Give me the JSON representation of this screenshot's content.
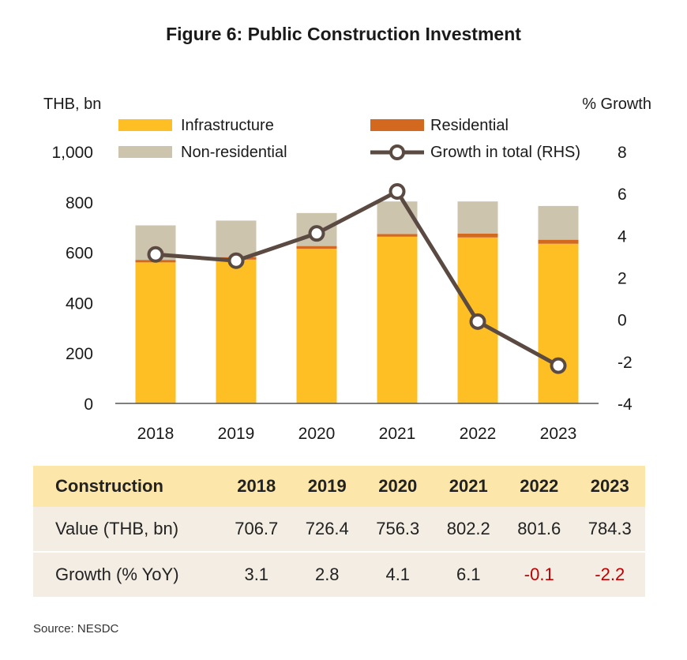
{
  "title": "Figure 6: Public Construction Investment",
  "chart_data": {
    "type": "bar",
    "stacked": true,
    "categories": [
      "2018",
      "2019",
      "2020",
      "2021",
      "2022",
      "2023"
    ],
    "series": [
      {
        "name": "Infrastructure",
        "color": "#fdbf24",
        "values": [
          560,
          571,
          614,
          662,
          659,
          634
        ]
      },
      {
        "name": "Residential",
        "color": "#d2691e",
        "values": [
          10,
          10,
          11,
          11,
          15,
          16
        ]
      },
      {
        "name": "Non-residential",
        "color": "#cdc4ae",
        "values": [
          137,
          145,
          131,
          129,
          128,
          134
        ]
      }
    ],
    "line": {
      "name": "Growth in total (RHS)",
      "axis": "right",
      "color": "#5a4a42",
      "values": [
        3.1,
        2.8,
        4.1,
        6.1,
        -0.1,
        -2.2
      ]
    },
    "ylabel_left": "THB, bn",
    "ylabel_right": "% Growth",
    "ylim_left": [
      0,
      1000
    ],
    "ylim_right": [
      -4,
      8
    ],
    "yticks_left": [
      "0",
      "200",
      "400",
      "600",
      "800",
      "1,000"
    ],
    "yticks_right": [
      "-4",
      "-2",
      "0",
      "2",
      "4",
      "6",
      "8"
    ],
    "legend_position": "top",
    "grid": false
  },
  "table": {
    "header": [
      "Construction",
      "2018",
      "2019",
      "2020",
      "2021",
      "2022",
      "2023"
    ],
    "rows": [
      {
        "label": "Value (THB, bn)",
        "cells": [
          "706.7",
          "726.4",
          "756.3",
          "802.2",
          "801.6",
          "784.3"
        ]
      },
      {
        "label": "Growth (% YoY)",
        "cells": [
          "3.1",
          "2.8",
          "4.1",
          "6.1",
          "-0.1",
          "-2.2"
        ]
      }
    ],
    "negative_color": "#c00000"
  },
  "source": "Source: NESDC"
}
